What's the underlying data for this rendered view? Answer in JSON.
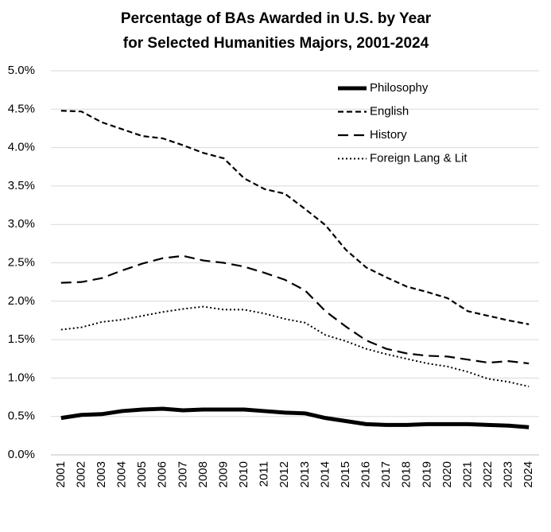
{
  "chart_data": {
    "type": "line",
    "title": [
      "Percentage of BAs Awarded in U.S. by Year",
      "for Selected Humanities Majors, 2001-2024"
    ],
    "categories": [
      "2001",
      "2002",
      "2003",
      "2004",
      "2005",
      "2006",
      "2007",
      "2008",
      "2009",
      "2010",
      "2011",
      "2012",
      "2013",
      "2014",
      "2015",
      "2016",
      "2017",
      "2018",
      "2019",
      "2020",
      "2021",
      "2022",
      "2023",
      "2024"
    ],
    "series": [
      {
        "name": "Philosophy",
        "color": "#000000",
        "line_style": "solid",
        "values": [
          0.48,
          0.52,
          0.53,
          0.57,
          0.59,
          0.6,
          0.58,
          0.59,
          0.59,
          0.59,
          0.57,
          0.55,
          0.54,
          0.48,
          0.44,
          0.4,
          0.39,
          0.39,
          0.4,
          0.4,
          0.4,
          0.39,
          0.38,
          0.36
        ]
      },
      {
        "name": "English",
        "color": "#000000",
        "line_style": "dash",
        "values": [
          4.48,
          4.47,
          4.33,
          4.24,
          4.15,
          4.12,
          4.03,
          3.93,
          3.86,
          3.6,
          3.46,
          3.4,
          3.2,
          2.99,
          2.67,
          2.44,
          2.31,
          2.19,
          2.12,
          2.04,
          1.87,
          1.81,
          1.75,
          1.7
        ]
      },
      {
        "name": "History",
        "color": "#000000",
        "line_style": "long-dash",
        "values": [
          2.24,
          2.25,
          2.3,
          2.4,
          2.49,
          2.56,
          2.59,
          2.53,
          2.5,
          2.45,
          2.37,
          2.28,
          2.14,
          1.87,
          1.67,
          1.49,
          1.38,
          1.32,
          1.29,
          1.28,
          1.24,
          1.2,
          1.22,
          1.19
        ]
      },
      {
        "name": "Foreign Lang & Lit",
        "color": "#000000",
        "line_style": "dot",
        "values": [
          1.63,
          1.66,
          1.73,
          1.76,
          1.81,
          1.86,
          1.9,
          1.93,
          1.89,
          1.89,
          1.84,
          1.77,
          1.72,
          1.56,
          1.48,
          1.38,
          1.31,
          1.25,
          1.19,
          1.15,
          1.08,
          0.99,
          0.95,
          0.89
        ]
      }
    ],
    "ylim": [
      0,
      5
    ],
    "yticks": [
      {
        "value": 0,
        "label": "0.0%"
      },
      {
        "value": 0.5,
        "label": "0.5%"
      },
      {
        "value": 1,
        "label": "1.0%"
      },
      {
        "value": 1.5,
        "label": "1.5%"
      },
      {
        "value": 2,
        "label": "2.0%"
      },
      {
        "value": 2.5,
        "label": "2.5%"
      },
      {
        "value": 3,
        "label": "3.0%"
      },
      {
        "value": 3.5,
        "label": "3.5%"
      },
      {
        "value": 4,
        "label": "4.0%"
      },
      {
        "value": 4.5,
        "label": "4.5%"
      },
      {
        "value": 5,
        "label": "5.0%"
      }
    ],
    "grid": true,
    "legend": "top-right"
  }
}
